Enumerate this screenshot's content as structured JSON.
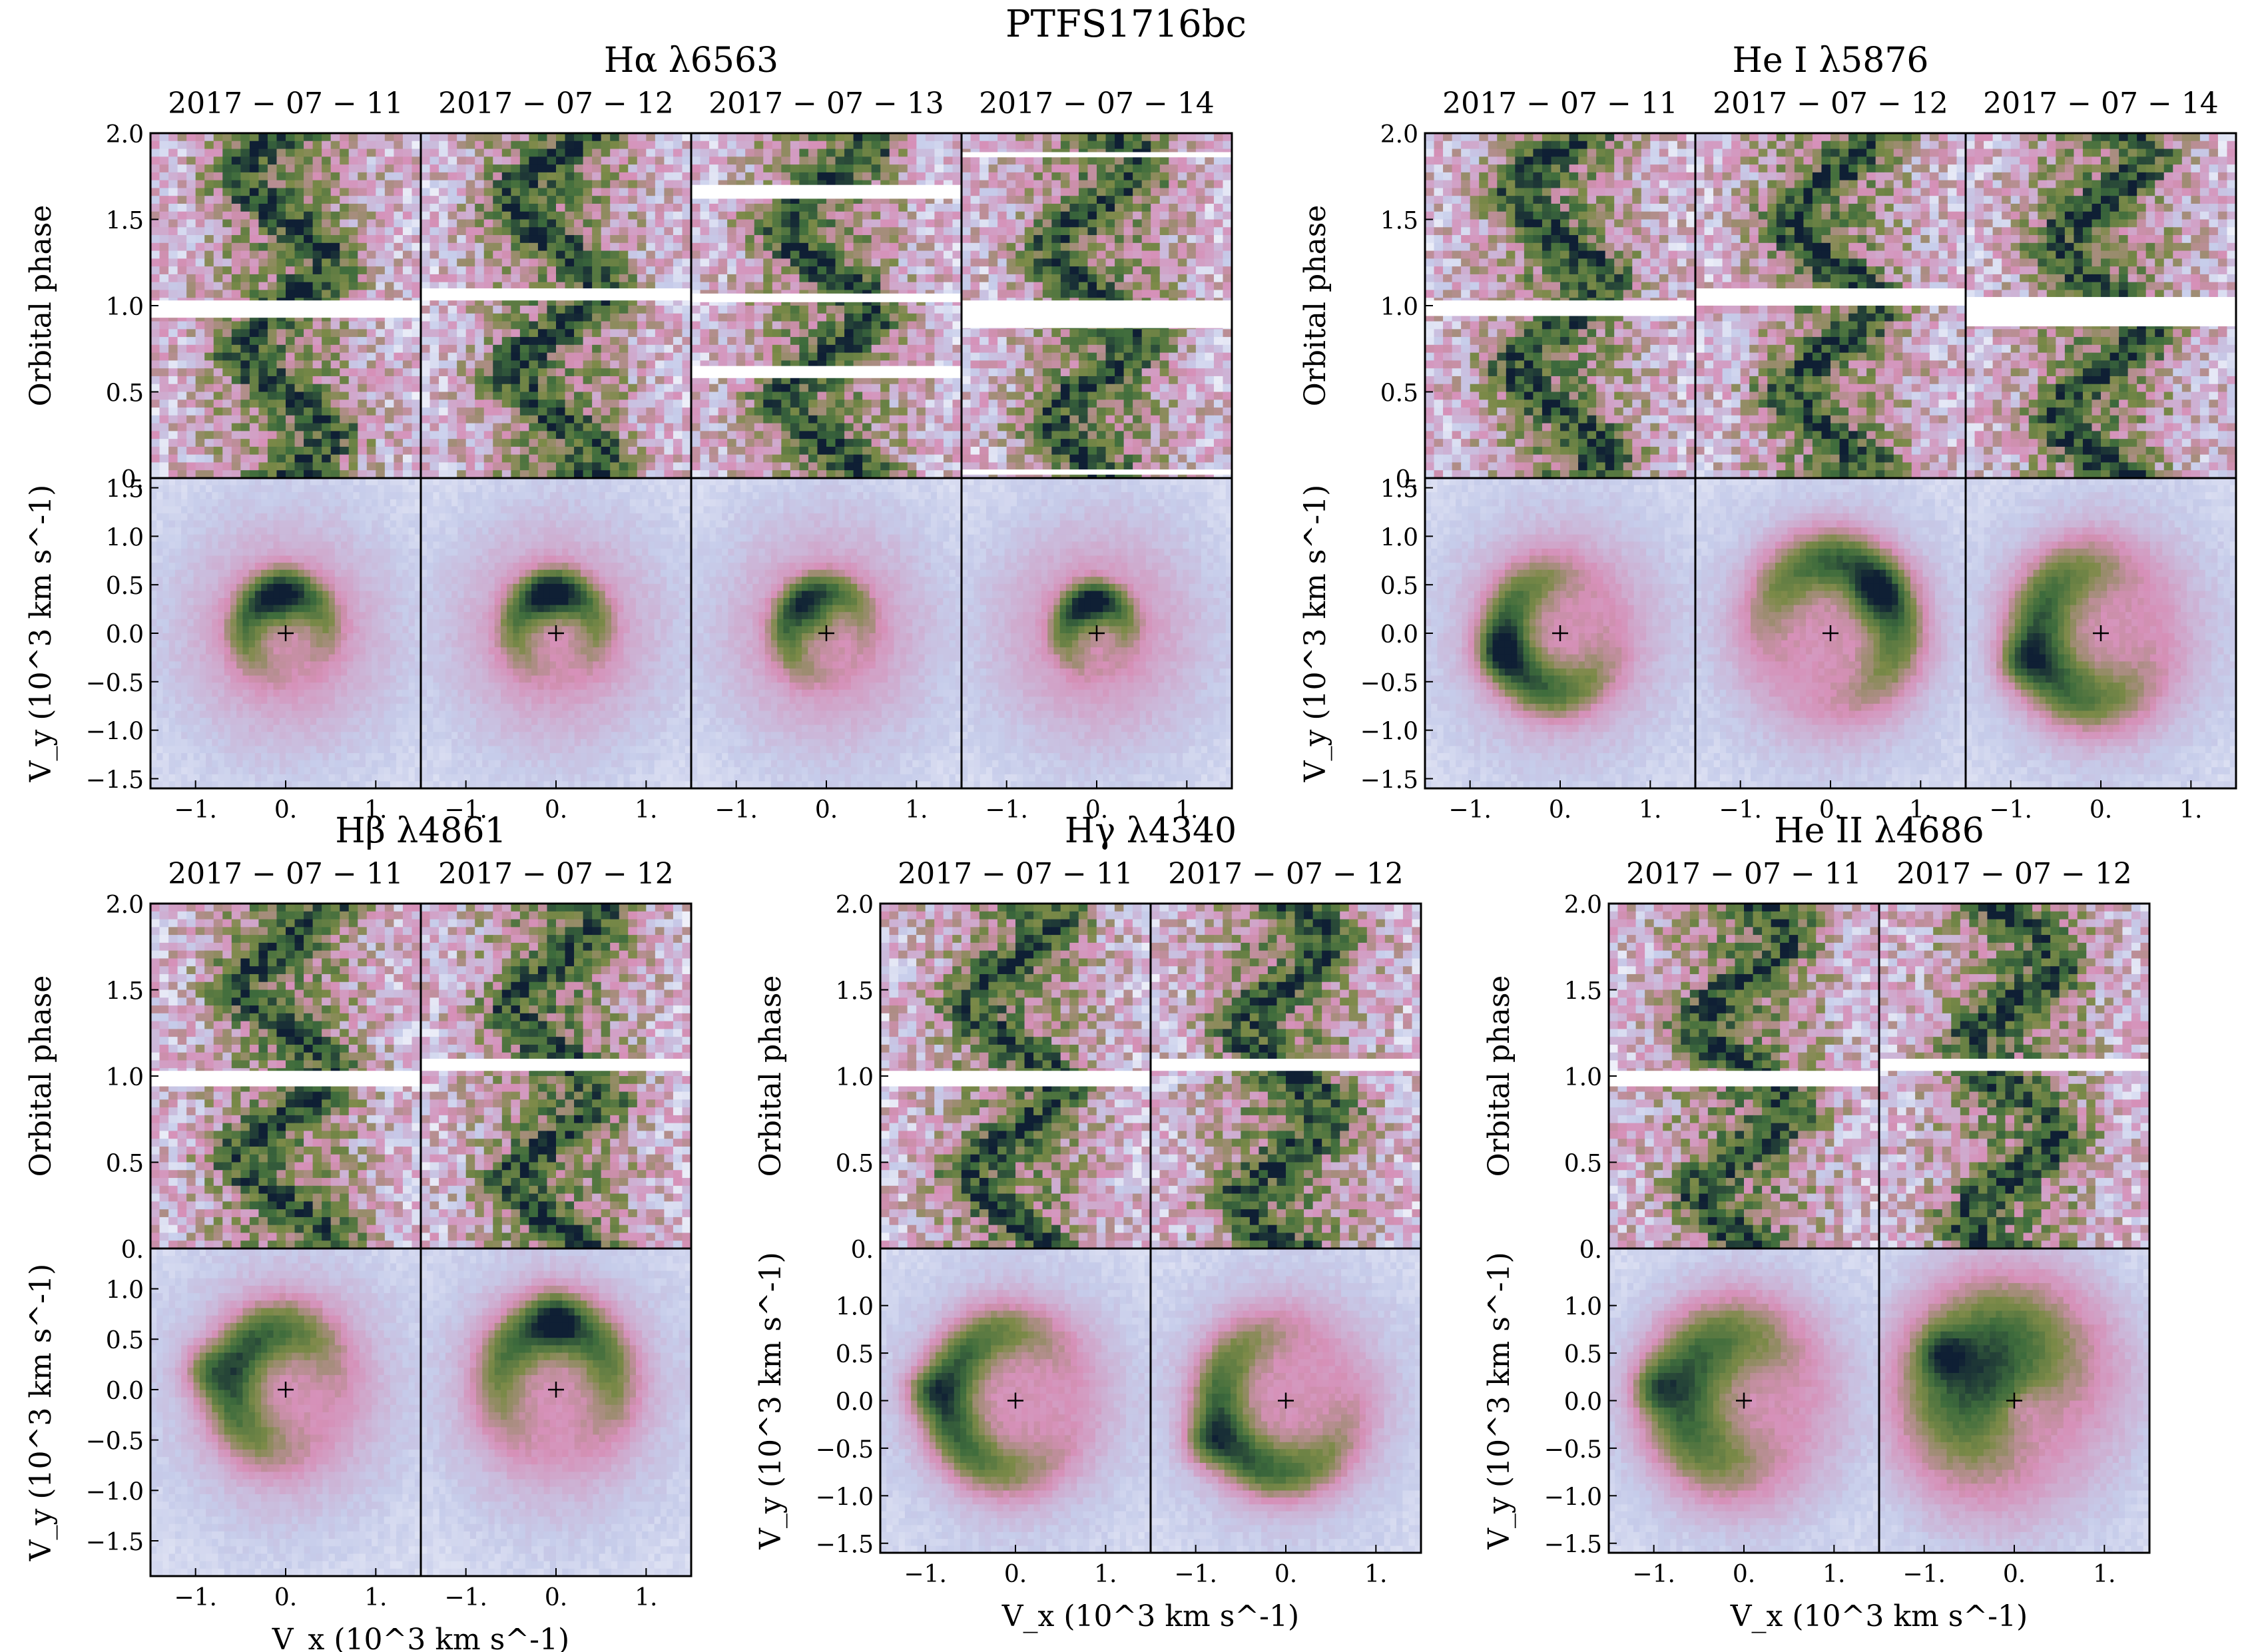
{
  "figure": {
    "title": "PTFS1716bc",
    "xlabel": "V_x (10^3 km s^-1)",
    "ylabel_trail": "Orbital phase",
    "ylabel_tomo": "V_y (10^3 km s^-1)"
  },
  "colors": {
    "background": "#ffffff",
    "map_low": "#ffffff",
    "map_lavender": "#c6ccea",
    "map_pink": "#d690b8",
    "map_olive": "#7c8a48",
    "map_green": "#3e6c3c",
    "map_dark": "#0f1f34",
    "frame": "#000000"
  },
  "chart_data": [
    {
      "type": "heatmap",
      "group": "Ha",
      "line_label": "Hα λ6563",
      "dates": [
        "2017-07-11",
        "2017-07-12",
        "2017-07-13",
        "2017-07-14"
      ],
      "trail_ylim": [
        0.0,
        2.0
      ],
      "trail_yticks": [
        "0.",
        "0.5",
        "1.0",
        "1.5",
        "2.0"
      ],
      "tomo_xlim": [
        -1.5,
        1.5
      ],
      "tomo_ylim": [
        -1.6,
        1.6
      ],
      "tomo_xticks": [
        "−1.",
        "0.",
        "1."
      ],
      "tomo_yticks": [
        "−1.5",
        "−1.0",
        "−0.5",
        "0.0",
        "0.5",
        "1.0",
        "1.5"
      ],
      "trail_gaps": [
        [
          [
            0.93,
            1.03
          ]
        ],
        [
          [
            1.03,
            1.1
          ]
        ],
        [
          [
            0.58,
            0.65
          ],
          [
            1.02,
            1.07
          ],
          [
            1.62,
            1.7
          ]
        ],
        [
          [
            0.87,
            1.03
          ],
          [
            1.86,
            1.89
          ],
          [
            0.02,
            0.05
          ]
        ]
      ],
      "tomo_peaks": [
        {
          "ring": 0.45,
          "width": 0.22,
          "phase": 1.9,
          "amp": 0.9,
          "spot": [
            -0.05,
            0.3
          ]
        },
        {
          "ring": 0.45,
          "width": 0.22,
          "phase": 1.7,
          "amp": 0.9,
          "spot": [
            -0.05,
            0.35
          ]
        },
        {
          "ring": 0.45,
          "width": 0.2,
          "phase": 2.2,
          "amp": 0.8,
          "spot": [
            -0.15,
            0.2
          ]
        },
        {
          "ring": 0.35,
          "width": 0.18,
          "phase": 1.9,
          "amp": 0.85,
          "spot": [
            -0.05,
            0.25
          ]
        }
      ]
    },
    {
      "type": "heatmap",
      "group": "HeI",
      "line_label": "He I λ5876",
      "dates": [
        "2017-07-11",
        "2017-07-12",
        "2017-07-14"
      ],
      "trail_ylim": [
        0.0,
        2.0
      ],
      "trail_yticks": [
        "0.",
        "0.5",
        "1.0",
        "1.5",
        "2.0"
      ],
      "tomo_xlim": [
        -1.5,
        1.5
      ],
      "tomo_ylim": [
        -1.6,
        1.6
      ],
      "tomo_xticks": [
        "−1.",
        "0.",
        "1."
      ],
      "tomo_yticks": [
        "−1.5",
        "−1.0",
        "−0.5",
        "0.0",
        "0.5",
        "1.0",
        "1.5"
      ],
      "trail_gaps": [
        [
          [
            0.94,
            1.03
          ]
        ],
        [
          [
            1.0,
            1.1
          ]
        ],
        [
          [
            0.88,
            1.05
          ]
        ]
      ],
      "tomo_peaks": [
        {
          "ring": 0.6,
          "width": 0.28,
          "phase": 3.6,
          "amp": 1.0,
          "spot": [
            -0.7,
            -0.2
          ]
        },
        {
          "ring": 0.75,
          "width": 0.32,
          "phase": 1.0,
          "amp": 1.0,
          "spot": [
            0.5,
            0.4
          ]
        },
        {
          "ring": 0.7,
          "width": 0.35,
          "phase": 3.4,
          "amp": 1.0,
          "spot": [
            -0.9,
            -0.3
          ]
        }
      ]
    },
    {
      "type": "heatmap",
      "group": "Hb",
      "line_label": "Hβ λ4861",
      "dates": [
        "2017-07-11",
        "2017-07-12"
      ],
      "trail_ylim": [
        0.0,
        2.0
      ],
      "trail_yticks": [
        "0.",
        "0.5",
        "1.0",
        "1.5",
        "2.0"
      ],
      "tomo_xlim": [
        -1.5,
        1.5
      ],
      "tomo_ylim": [
        -1.85,
        1.4
      ],
      "tomo_xticks": [
        "−1.",
        "0.",
        "1."
      ],
      "tomo_yticks": [
        "−1.5",
        "−1.0",
        "−0.5",
        "0.0",
        "0.5",
        "1.0"
      ],
      "trail_gaps": [
        [
          [
            0.94,
            1.03
          ]
        ],
        [
          [
            1.03,
            1.1
          ]
        ]
      ],
      "tomo_peaks": [
        {
          "ring": 0.6,
          "width": 0.3,
          "phase": 2.6,
          "amp": 0.95,
          "spot": [
            -0.9,
            0.2
          ]
        },
        {
          "ring": 0.65,
          "width": 0.3,
          "phase": 1.6,
          "amp": 0.95,
          "spot": [
            0.0,
            0.7
          ]
        }
      ]
    },
    {
      "type": "heatmap",
      "group": "Hg",
      "line_label": "Hγ λ4340",
      "dates": [
        "2017-07-11",
        "2017-07-12"
      ],
      "trail_ylim": [
        0.0,
        2.0
      ],
      "trail_yticks": [
        "0.",
        "0.5",
        "1.0",
        "1.5",
        "2.0"
      ],
      "tomo_xlim": [
        -1.5,
        1.5
      ],
      "tomo_ylim": [
        -1.6,
        1.6
      ],
      "tomo_xticks": [
        "−1.",
        "0.",
        "1."
      ],
      "tomo_yticks": [
        "−1.5",
        "−1.0",
        "−0.5",
        "0.0",
        "0.5",
        "1.0"
      ],
      "trail_gaps": [
        [
          [
            0.94,
            1.03
          ]
        ],
        [
          [
            1.03,
            1.1
          ]
        ]
      ],
      "tomo_peaks": [
        {
          "ring": 0.75,
          "width": 0.3,
          "phase": 3.1,
          "amp": 1.0,
          "spot": [
            -1.0,
            0.1
          ]
        },
        {
          "ring": 0.75,
          "width": 0.3,
          "phase": 3.8,
          "amp": 1.0,
          "spot": [
            -0.9,
            -0.45
          ]
        }
      ]
    },
    {
      "type": "heatmap",
      "group": "HeII",
      "line_label": "He II λ4686",
      "dates": [
        "2017-07-11",
        "2017-07-12"
      ],
      "trail_ylim": [
        0.0,
        2.0
      ],
      "trail_yticks": [
        "0.",
        "0.5",
        "1.0",
        "1.5",
        "2.0"
      ],
      "tomo_xlim": [
        -1.5,
        1.5
      ],
      "tomo_ylim": [
        -1.6,
        1.6
      ],
      "tomo_xticks": [
        "−1.",
        "0.",
        "1."
      ],
      "tomo_yticks": [
        "−1.5",
        "−1.0",
        "−0.5",
        "0.0",
        "0.5",
        "1.0"
      ],
      "trail_gaps": [
        [
          [
            0.94,
            1.03
          ]
        ],
        [
          [
            1.03,
            1.1
          ]
        ]
      ],
      "tomo_peaks": [
        {
          "ring": 0.7,
          "width": 0.45,
          "phase": 2.9,
          "amp": 0.95,
          "spot": [
            -1.0,
            0.15
          ]
        },
        {
          "ring": 0.6,
          "width": 0.8,
          "phase": 2.4,
          "amp": 1.0,
          "spot": [
            -0.8,
            0.5
          ]
        }
      ]
    }
  ]
}
